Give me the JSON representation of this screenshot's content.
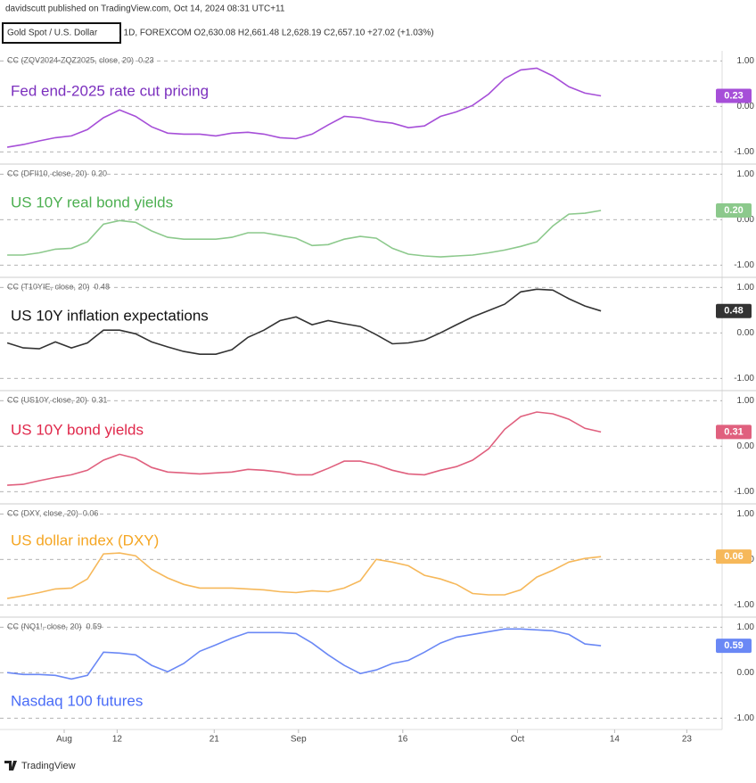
{
  "header": {
    "published": "davidscutt published on TradingView.com, Oct 14, 2024 08:31 UTC+11",
    "symbol": "Gold Spot / U.S. Dollar",
    "details": ", 1D, FOREXCOM  O2,630.08 H2,661.48 L2,628.19 C2,657.10 +27.02 (+1.03%)"
  },
  "footer": {
    "brand": "TradingView"
  },
  "x_axis": {
    "x": [
      0,
      2,
      4,
      6,
      8,
      10,
      12,
      14,
      16,
      18,
      20,
      22,
      24,
      26,
      28,
      30,
      32,
      34,
      36,
      38,
      40,
      42,
      44,
      46,
      48,
      50,
      52,
      54,
      56,
      58,
      60,
      62,
      64,
      66,
      68,
      70,
      72,
      74
    ],
    "xlim": [
      -0.9,
      89.1
    ],
    "xticks": [
      {
        "value": 7.1,
        "label": "Aug"
      },
      {
        "value": 13.7,
        "label": "12"
      },
      {
        "value": 25.8,
        "label": "21"
      },
      {
        "value": 36.3,
        "label": "Sep"
      },
      {
        "value": 49.3,
        "label": "16"
      },
      {
        "value": 63.6,
        "label": "Oct"
      },
      {
        "value": 75.7,
        "label": "14"
      },
      {
        "value": 84.7,
        "label": "23"
      }
    ]
  },
  "chart_data": [
    {
      "type": "line",
      "title": "CC (ZQV2024-ZQZ2025, close, 20)",
      "annotation": "Fed end-2025 rate cut pricing",
      "color": "#a64fd8",
      "text_color": "#7b2fbe",
      "values": [
        -0.9,
        -0.84,
        -0.76,
        -0.69,
        -0.65,
        -0.51,
        -0.25,
        -0.08,
        -0.22,
        -0.45,
        -0.59,
        -0.61,
        -0.61,
        -0.65,
        -0.59,
        -0.57,
        -0.61,
        -0.69,
        -0.71,
        -0.61,
        -0.41,
        -0.22,
        -0.25,
        -0.33,
        -0.37,
        -0.47,
        -0.43,
        -0.22,
        -0.12,
        0.02,
        0.27,
        0.61,
        0.8,
        0.84,
        0.67,
        0.43,
        0.29,
        0.23
      ],
      "value_labels": [
        null,
        null,
        null,
        null,
        null,
        null,
        null,
        null,
        null,
        null,
        null,
        null,
        null,
        null,
        null,
        null,
        null,
        null,
        null,
        null,
        null,
        null,
        null,
        null,
        null,
        null,
        null,
        null,
        null,
        null,
        null,
        null,
        null,
        null,
        null,
        null,
        null,
        "0.23"
      ],
      "ylim": [
        -1.25,
        1.22
      ],
      "yticks": [
        {
          "value": 1,
          "label": "1.00"
        },
        {
          "value": 0,
          "label": "0.00"
        },
        {
          "value": -1,
          "label": "-1.00"
        }
      ]
    },
    {
      "type": "line",
      "title": "CC (DFII10, close, 20)",
      "annotation": "US 10Y real bond yields",
      "color": "#8cc98c",
      "text_color": "#4caf50",
      "values": [
        -0.78,
        -0.78,
        -0.73,
        -0.65,
        -0.63,
        -0.49,
        -0.1,
        -0.02,
        -0.06,
        -0.25,
        -0.39,
        -0.43,
        -0.43,
        -0.43,
        -0.39,
        -0.29,
        -0.29,
        -0.35,
        -0.41,
        -0.57,
        -0.55,
        -0.43,
        -0.37,
        -0.41,
        -0.63,
        -0.76,
        -0.8,
        -0.82,
        -0.8,
        -0.78,
        -0.73,
        -0.67,
        -0.59,
        -0.49,
        -0.14,
        0.12,
        0.14,
        0.2
      ],
      "value_labels": [
        null,
        null,
        null,
        null,
        null,
        null,
        null,
        null,
        null,
        null,
        null,
        null,
        null,
        null,
        null,
        null,
        null,
        null,
        null,
        null,
        null,
        null,
        null,
        null,
        null,
        null,
        null,
        null,
        null,
        null,
        null,
        null,
        null,
        null,
        null,
        null,
        null,
        "0.20"
      ],
      "ylim": [
        -1.25,
        1.22
      ],
      "yticks": [
        {
          "value": 1,
          "label": "1.00"
        },
        {
          "value": 0,
          "label": "0.00"
        },
        {
          "value": -1,
          "label": "-1.00"
        }
      ]
    },
    {
      "type": "line",
      "title": "CC (T10YIE, close, 20)",
      "annotation": "US 10Y inflation expectations",
      "color": "#333333",
      "text_color": "#111111",
      "values": [
        -0.22,
        -0.33,
        -0.35,
        -0.2,
        -0.33,
        -0.22,
        0.06,
        0.06,
        -0.02,
        -0.2,
        -0.31,
        -0.41,
        -0.47,
        -0.47,
        -0.37,
        -0.1,
        0.06,
        0.27,
        0.35,
        0.18,
        0.27,
        0.2,
        0.14,
        -0.04,
        -0.24,
        -0.22,
        -0.16,
        0.0,
        0.18,
        0.35,
        0.49,
        0.63,
        0.9,
        0.96,
        0.94,
        0.75,
        0.59,
        0.48
      ],
      "value_labels": [
        null,
        null,
        null,
        null,
        null,
        null,
        null,
        null,
        null,
        null,
        null,
        null,
        null,
        null,
        null,
        null,
        null,
        null,
        null,
        null,
        null,
        null,
        null,
        null,
        null,
        null,
        null,
        null,
        null,
        null,
        null,
        null,
        null,
        null,
        null,
        null,
        null,
        "0.48"
      ],
      "ylim": [
        -1.25,
        1.22
      ],
      "yticks": [
        {
          "value": 1,
          "label": "1.00"
        },
        {
          "value": 0,
          "label": "0.00"
        },
        {
          "value": -1,
          "label": "-1.00"
        }
      ]
    },
    {
      "type": "line",
      "title": "CC (US10Y, close, 20)",
      "annotation": "US 10Y bond yields",
      "color": "#e0607e",
      "text_color": "#e0284b",
      "values": [
        -0.86,
        -0.84,
        -0.76,
        -0.69,
        -0.63,
        -0.53,
        -0.31,
        -0.18,
        -0.27,
        -0.47,
        -0.57,
        -0.59,
        -0.61,
        -0.59,
        -0.57,
        -0.51,
        -0.53,
        -0.57,
        -0.63,
        -0.63,
        -0.49,
        -0.33,
        -0.33,
        -0.41,
        -0.53,
        -0.61,
        -0.63,
        -0.53,
        -0.45,
        -0.31,
        -0.06,
        0.37,
        0.65,
        0.75,
        0.71,
        0.59,
        0.39,
        0.31
      ],
      "value_labels": [
        null,
        null,
        null,
        null,
        null,
        null,
        null,
        null,
        null,
        null,
        null,
        null,
        null,
        null,
        null,
        null,
        null,
        null,
        null,
        null,
        null,
        null,
        null,
        null,
        null,
        null,
        null,
        null,
        null,
        null,
        null,
        null,
        null,
        null,
        null,
        null,
        null,
        "0.31"
      ],
      "ylim": [
        -1.25,
        1.22
      ],
      "yticks": [
        {
          "value": 1,
          "label": "1.00"
        },
        {
          "value": 0,
          "label": "0.00"
        },
        {
          "value": -1,
          "label": "-1.00"
        }
      ]
    },
    {
      "type": "line",
      "title": "CC (DXY, close, 20)",
      "annotation": "US dollar index (DXY)",
      "color": "#f6b85a",
      "text_color": "#f5a623",
      "values": [
        -0.86,
        -0.8,
        -0.73,
        -0.65,
        -0.63,
        -0.43,
        0.12,
        0.14,
        0.08,
        -0.22,
        -0.41,
        -0.55,
        -0.63,
        -0.63,
        -0.63,
        -0.65,
        -0.67,
        -0.71,
        -0.73,
        -0.69,
        -0.71,
        -0.63,
        -0.47,
        0.0,
        -0.06,
        -0.14,
        -0.35,
        -0.43,
        -0.55,
        -0.75,
        -0.78,
        -0.78,
        -0.67,
        -0.39,
        -0.24,
        -0.06,
        0.02,
        0.06
      ],
      "value_labels": [
        null,
        null,
        null,
        null,
        null,
        null,
        null,
        null,
        null,
        null,
        null,
        null,
        null,
        null,
        null,
        null,
        null,
        null,
        null,
        null,
        null,
        null,
        null,
        null,
        null,
        null,
        null,
        null,
        null,
        null,
        null,
        null,
        null,
        null,
        null,
        null,
        null,
        "0.06"
      ],
      "ylim": [
        -1.25,
        1.22
      ],
      "yticks": [
        {
          "value": 1,
          "label": "1.00"
        },
        {
          "value": 0,
          "label": "0.00"
        },
        {
          "value": -1,
          "label": "-1.00"
        }
      ]
    },
    {
      "type": "line",
      "title": "CC (NQ1!, close, 20)",
      "annotation": "Nasdaq 100 futures",
      "color": "#6a88f5",
      "text_color": "#4a6cf7",
      "values": [
        0.0,
        -0.04,
        -0.04,
        -0.06,
        -0.14,
        -0.06,
        0.45,
        0.43,
        0.39,
        0.16,
        0.02,
        0.2,
        0.47,
        0.61,
        0.76,
        0.88,
        0.88,
        0.88,
        0.86,
        0.65,
        0.39,
        0.16,
        -0.02,
        0.06,
        0.2,
        0.27,
        0.45,
        0.65,
        0.78,
        0.84,
        0.9,
        0.96,
        0.96,
        0.94,
        0.92,
        0.84,
        0.63,
        0.59
      ],
      "value_labels": [
        null,
        null,
        null,
        null,
        null,
        null,
        null,
        null,
        null,
        null,
        null,
        null,
        null,
        null,
        null,
        null,
        null,
        null,
        null,
        null,
        null,
        null,
        null,
        null,
        null,
        null,
        null,
        null,
        null,
        null,
        null,
        null,
        null,
        null,
        null,
        null,
        null,
        "0.59"
      ],
      "ylim": [
        -1.25,
        1.22
      ],
      "yticks": [
        {
          "value": 1,
          "label": "1.00"
        },
        {
          "value": 0,
          "label": "0.00"
        },
        {
          "value": -1,
          "label": "-1.00"
        }
      ]
    }
  ]
}
